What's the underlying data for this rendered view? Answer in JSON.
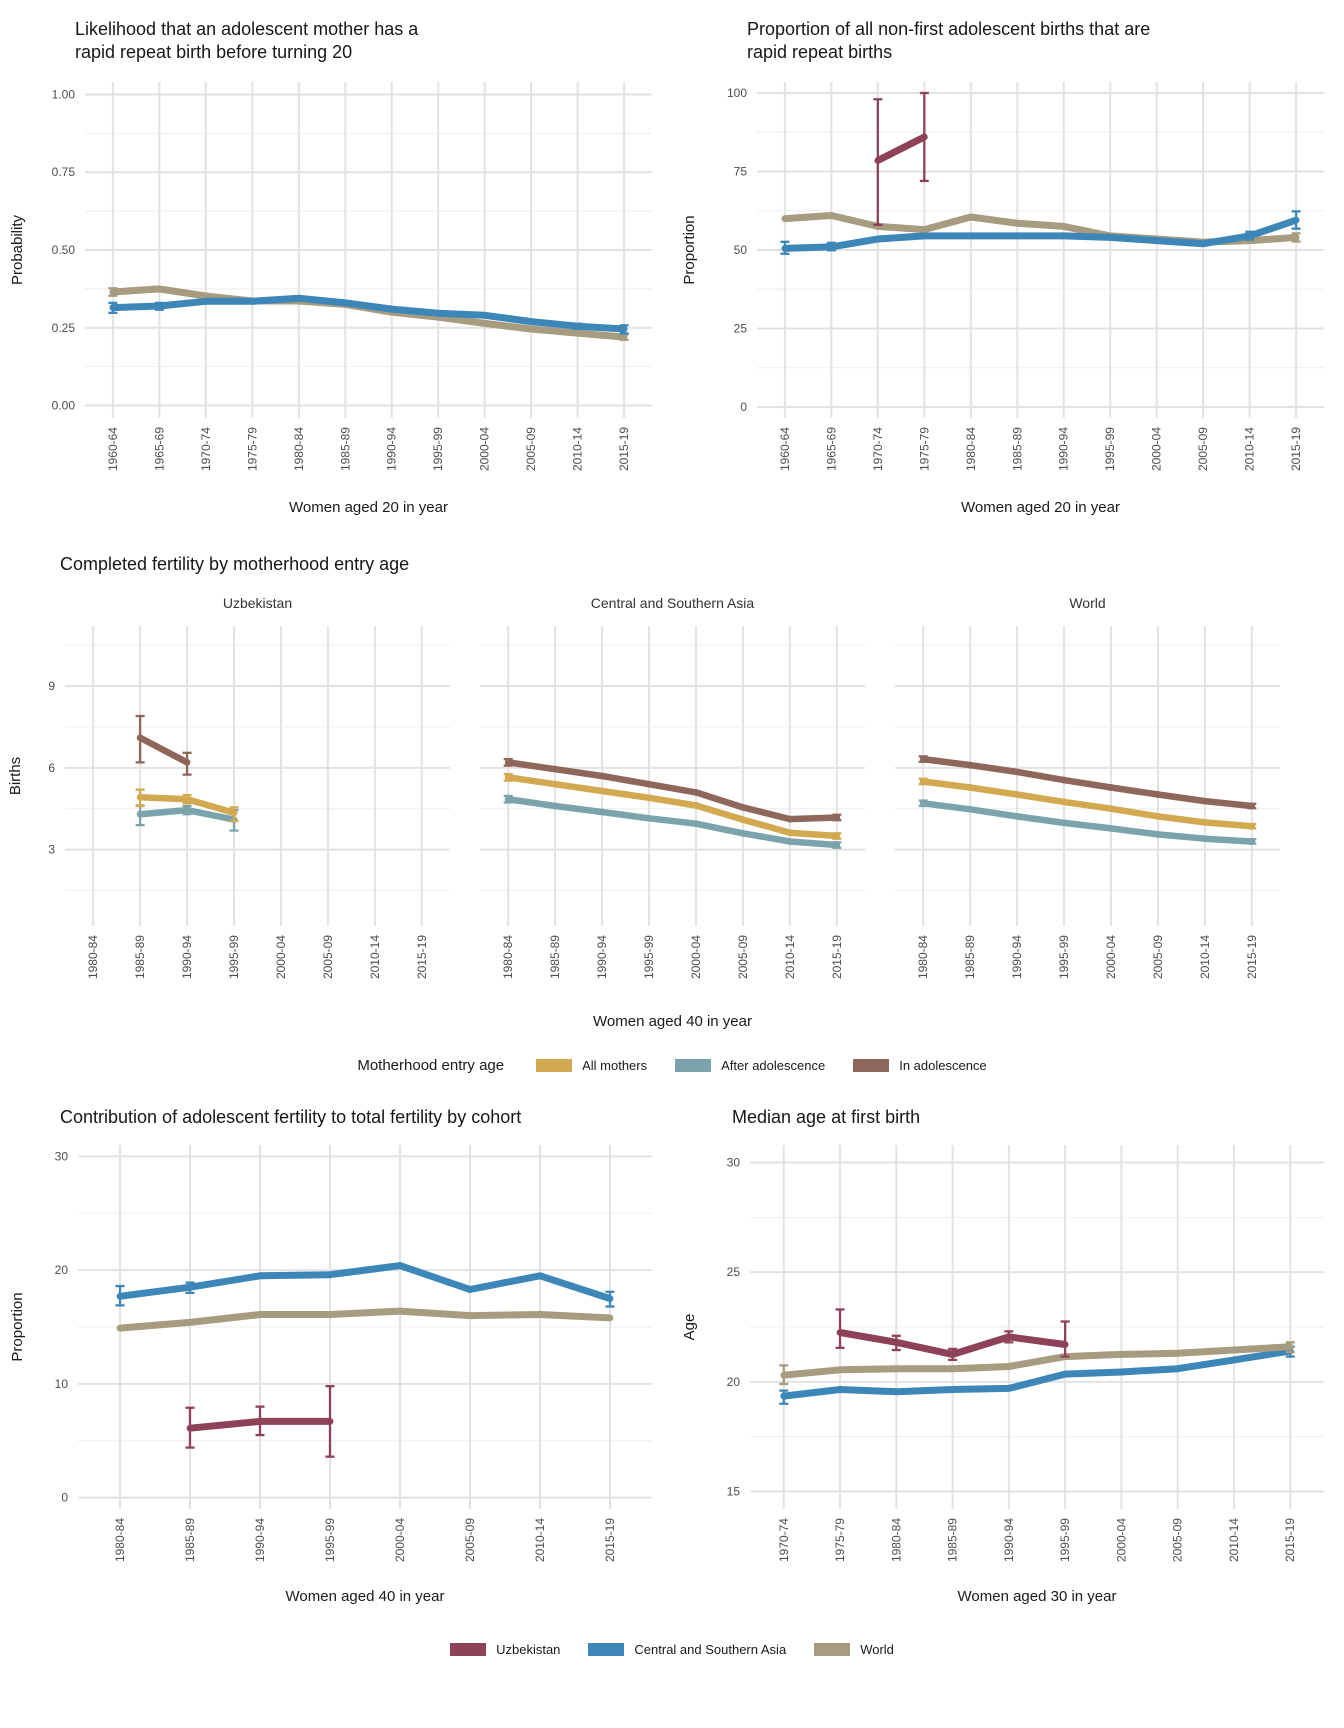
{
  "colors": {
    "uzbekistan": "#8e4258",
    "central_southern_asia": "#3d86b8",
    "world": "#a79b80",
    "all_mothers": "#d2a850",
    "after_adolescence": "#7ba3ab",
    "in_adolescence": "#8f665a"
  },
  "entry_age_legend": {
    "title": "Motherhood entry age",
    "items": [
      {
        "label": "All mothers",
        "color": "all_mothers"
      },
      {
        "label": "After adolescence",
        "color": "after_adolescence"
      },
      {
        "label": "In adolescence",
        "color": "in_adolescence"
      }
    ]
  },
  "region_legend": {
    "items": [
      {
        "label": "Uzbekistan",
        "color": "uzbekistan"
      },
      {
        "label": "Central and Southern Asia",
        "color": "central_southern_asia"
      },
      {
        "label": "World",
        "color": "world"
      }
    ]
  },
  "chart_data": [
    {
      "id": "rrb-likelihood",
      "type": "line",
      "title": "Likelihood that an adolescent mother has a\nrapid repeat birth before turning 20",
      "xlabel": "Women aged 20 in year",
      "ylabel": "Probability",
      "ylim": [
        -0.04,
        1.04
      ],
      "yticks": [
        0,
        0.25,
        0.5,
        0.75,
        1
      ],
      "ytick_labels": [
        "0.00",
        "0.25",
        "0.50",
        "0.75",
        "1.00"
      ],
      "categories": [
        "1960-64",
        "1965-69",
        "1970-74",
        "1975-79",
        "1980-84",
        "1985-89",
        "1990-94",
        "1995-99",
        "2000-04",
        "2005-09",
        "2010-14",
        "2015-19"
      ],
      "series": [
        {
          "name": "World",
          "color": "world",
          "values": [
            0.365,
            0.375,
            0.352,
            0.336,
            0.336,
            0.325,
            0.3,
            0.284,
            0.264,
            0.246,
            0.233,
            0.22
          ],
          "err_lo": [
            0.353,
            null,
            null,
            null,
            null,
            null,
            null,
            null,
            null,
            null,
            null,
            0.211
          ],
          "err_hi": [
            0.377,
            null,
            null,
            null,
            null,
            null,
            null,
            null,
            null,
            null,
            null,
            0.229
          ]
        },
        {
          "name": "Central and Southern Asia",
          "color": "central_southern_asia",
          "values": [
            0.315,
            0.32,
            0.335,
            0.335,
            0.345,
            0.33,
            0.31,
            0.297,
            0.29,
            0.27,
            0.255,
            0.246
          ],
          "err_lo": [
            0.298,
            0.308,
            null,
            null,
            null,
            null,
            null,
            null,
            null,
            null,
            0.246,
            0.232
          ],
          "err_hi": [
            0.33,
            0.33,
            null,
            null,
            null,
            null,
            null,
            null,
            null,
            null,
            0.263,
            0.258
          ]
        }
      ]
    },
    {
      "id": "rrb-proportion",
      "type": "line",
      "title": "Proportion of all non-first adolescent births that are\nrapid repeat births",
      "xlabel": "Women aged 20 in year",
      "ylabel": "Proportion",
      "ylim": [
        -3.5,
        103.5
      ],
      "yticks": [
        0,
        25,
        50,
        75,
        100
      ],
      "ytick_labels": [
        "0",
        "25",
        "50",
        "75",
        "100"
      ],
      "categories": [
        "1960-64",
        "1965-69",
        "1970-74",
        "1975-79",
        "1980-84",
        "1985-89",
        "1990-94",
        "1995-99",
        "2000-04",
        "2005-09",
        "2010-14",
        "2015-19"
      ],
      "series": [
        {
          "name": "World",
          "color": "world",
          "values": [
            60,
            61,
            57.5,
            56.5,
            60.5,
            58.5,
            57.5,
            54.5,
            53.5,
            52.5,
            53,
            54
          ],
          "err_lo": [
            null,
            null,
            null,
            null,
            null,
            null,
            null,
            null,
            null,
            null,
            null,
            52.7
          ],
          "err_hi": [
            null,
            null,
            null,
            null,
            null,
            null,
            null,
            null,
            null,
            null,
            null,
            55.3
          ]
        },
        {
          "name": "Central and Southern Asia",
          "color": "central_southern_asia",
          "values": [
            50.5,
            51,
            53.5,
            54.5,
            54.5,
            54.5,
            54.5,
            54,
            53,
            52,
            54.5,
            59.5
          ],
          "err_lo": [
            48.8,
            49.9,
            null,
            null,
            null,
            null,
            null,
            null,
            null,
            null,
            53.3,
            56.8
          ],
          "err_hi": [
            52.6,
            52.3,
            null,
            null,
            null,
            null,
            null,
            null,
            null,
            null,
            55.8,
            62.3
          ]
        },
        {
          "name": "Uzbekistan",
          "color": "uzbekistan",
          "values": [
            null,
            null,
            78.5,
            86,
            null,
            null,
            null,
            null,
            null,
            null,
            null,
            null
          ],
          "err_lo": [
            null,
            null,
            58,
            72,
            null,
            null,
            null,
            null,
            null,
            null,
            null,
            null
          ],
          "err_hi": [
            null,
            null,
            98,
            100,
            null,
            null,
            null,
            null,
            null,
            null,
            null,
            null
          ]
        }
      ]
    },
    {
      "id": "completed-fertility",
      "type": "line-faceted",
      "title": "Completed fertility by motherhood entry age",
      "xlabel": "Women aged 40 in year",
      "ylabel": "Births",
      "ylim": [
        0.2,
        11.2
      ],
      "yticks": [
        3,
        6,
        9
      ],
      "ytick_labels": [
        "3",
        "6",
        "9"
      ],
      "categories": [
        "1980-84",
        "1985-89",
        "1990-94",
        "1995-99",
        "2000-04",
        "2005-09",
        "2010-14",
        "2015-19"
      ],
      "facets": [
        {
          "label": "Uzbekistan",
          "series": [
            {
              "name": "After adolescence",
              "color": "after_adolescence",
              "values": [
                null,
                4.3,
                4.45,
                4.1,
                null,
                null,
                null,
                null
              ],
              "err_lo": [
                null,
                3.9,
                4.3,
                3.7,
                null,
                null,
                null,
                null
              ],
              "err_hi": [
                null,
                4.62,
                4.6,
                4.45,
                null,
                null,
                null,
                null
              ]
            },
            {
              "name": "All mothers",
              "color": "all_mothers",
              "values": [
                null,
                4.92,
                4.85,
                4.35,
                null,
                null,
                null,
                null
              ],
              "err_lo": [
                null,
                4.6,
                4.7,
                4.05,
                null,
                null,
                null,
                null
              ],
              "err_hi": [
                null,
                5.2,
                5.0,
                4.55,
                null,
                null,
                null,
                null
              ]
            },
            {
              "name": "In adolescence",
              "color": "in_adolescence",
              "values": [
                null,
                7.1,
                6.2,
                null,
                null,
                null,
                null,
                null
              ],
              "err_lo": [
                null,
                6.2,
                5.75,
                null,
                null,
                null,
                null,
                null
              ],
              "err_hi": [
                null,
                7.9,
                6.55,
                null,
                null,
                null,
                null,
                null
              ]
            }
          ]
        },
        {
          "label": "Central and Southern Asia",
          "series": [
            {
              "name": "After adolescence",
              "color": "after_adolescence",
              "values": [
                4.85,
                4.6,
                4.38,
                4.15,
                3.95,
                3.6,
                3.3,
                3.17
              ],
              "err_lo": [
                4.73,
                null,
                null,
                null,
                null,
                null,
                null,
                3.07
              ],
              "err_hi": [
                4.97,
                null,
                null,
                null,
                null,
                null,
                null,
                3.27
              ]
            },
            {
              "name": "All mothers",
              "color": "all_mothers",
              "values": [
                5.65,
                5.4,
                5.15,
                4.9,
                4.62,
                4.1,
                3.62,
                3.5
              ],
              "err_lo": [
                5.53,
                null,
                null,
                null,
                null,
                null,
                null,
                3.4
              ],
              "err_hi": [
                5.77,
                null,
                null,
                null,
                null,
                null,
                null,
                3.6
              ]
            },
            {
              "name": "In adolescence",
              "color": "in_adolescence",
              "values": [
                6.2,
                5.95,
                5.7,
                5.4,
                5.1,
                4.55,
                4.12,
                4.18
              ],
              "err_lo": [
                6.08,
                null,
                null,
                null,
                null,
                null,
                null,
                4.08
              ],
              "err_hi": [
                6.32,
                null,
                null,
                null,
                null,
                null,
                null,
                4.28
              ]
            }
          ]
        },
        {
          "label": "World",
          "series": [
            {
              "name": "After adolescence",
              "color": "after_adolescence",
              "values": [
                4.7,
                4.48,
                4.22,
                3.98,
                3.78,
                3.56,
                3.4,
                3.3
              ],
              "err_lo": [
                4.6,
                null,
                null,
                null,
                null,
                null,
                null,
                3.22
              ],
              "err_hi": [
                4.8,
                null,
                null,
                null,
                null,
                null,
                null,
                3.38
              ]
            },
            {
              "name": "All mothers",
              "color": "all_mothers",
              "values": [
                5.5,
                5.28,
                5.02,
                4.75,
                4.5,
                4.22,
                4.0,
                3.86
              ],
              "err_lo": [
                5.4,
                null,
                null,
                null,
                null,
                null,
                null,
                3.78
              ],
              "err_hi": [
                5.6,
                null,
                null,
                null,
                null,
                null,
                null,
                3.94
              ]
            },
            {
              "name": "In adolescence",
              "color": "in_adolescence",
              "values": [
                6.32,
                6.1,
                5.85,
                5.55,
                5.28,
                5.02,
                4.78,
                4.6
              ],
              "err_lo": [
                6.22,
                null,
                null,
                null,
                null,
                null,
                null,
                4.52
              ],
              "err_hi": [
                6.42,
                null,
                null,
                null,
                null,
                null,
                null,
                4.68
              ]
            }
          ]
        }
      ]
    },
    {
      "id": "adolescent-contribution",
      "type": "line",
      "title": "Contribution of adolescent fertility to total fertility by cohort",
      "xlabel": "Women aged 40 in year",
      "ylabel": "Proportion",
      "ylim": [
        -1,
        31
      ],
      "yticks": [
        0,
        10,
        20,
        30
      ],
      "ytick_labels": [
        "0",
        "10",
        "20",
        "30"
      ],
      "categories": [
        "1980-84",
        "1985-89",
        "1990-94",
        "1995-99",
        "2000-04",
        "2005-09",
        "2010-14",
        "2015-19"
      ],
      "series": [
        {
          "name": "World",
          "color": "world",
          "values": [
            14.9,
            15.4,
            16.1,
            16.1,
            16.4,
            16.0,
            16.1,
            15.8
          ]
        },
        {
          "name": "Central and Southern Asia",
          "color": "central_southern_asia",
          "values": [
            17.7,
            18.5,
            19.5,
            19.6,
            20.4,
            18.3,
            19.5,
            17.5
          ],
          "err_lo": [
            16.9,
            18.0,
            null,
            null,
            null,
            null,
            null,
            16.8
          ],
          "err_hi": [
            18.6,
            18.9,
            null,
            null,
            null,
            null,
            null,
            18.1
          ]
        },
        {
          "name": "Uzbekistan",
          "color": "uzbekistan",
          "values": [
            null,
            6.1,
            6.7,
            6.7,
            null,
            null,
            null,
            null
          ],
          "err_lo": [
            null,
            4.4,
            5.5,
            3.6,
            null,
            null,
            null,
            null
          ],
          "err_hi": [
            null,
            7.9,
            8.0,
            9.8,
            null,
            null,
            null,
            null
          ]
        }
      ]
    },
    {
      "id": "median-age-first-birth",
      "type": "line",
      "title": "Median age at first birth",
      "xlabel": "Women aged 30 in year",
      "ylabel": "Age",
      "ylim": [
        14.2,
        30.8
      ],
      "yticks": [
        15,
        20,
        25,
        30
      ],
      "ytick_labels": [
        "15",
        "20",
        "25",
        "30"
      ],
      "categories": [
        "1970-74",
        "1975-79",
        "1980-84",
        "1985-89",
        "1990-94",
        "1995-99",
        "2000-04",
        "2005-09",
        "2010-14",
        "2015-19"
      ],
      "series": [
        {
          "name": "Central and Southern Asia",
          "color": "central_southern_asia",
          "values": [
            19.35,
            19.65,
            19.55,
            19.65,
            19.7,
            20.35,
            20.45,
            20.6,
            21.0,
            21.4
          ],
          "err_lo": [
            19.0,
            null,
            null,
            null,
            null,
            null,
            null,
            null,
            null,
            21.15
          ],
          "err_hi": [
            19.6,
            null,
            null,
            null,
            null,
            null,
            null,
            null,
            null,
            21.6
          ]
        },
        {
          "name": "World",
          "color": "world",
          "values": [
            20.3,
            20.55,
            20.6,
            20.6,
            20.7,
            21.15,
            21.25,
            21.3,
            21.45,
            21.6
          ],
          "err_lo": [
            19.9,
            null,
            null,
            null,
            null,
            null,
            null,
            null,
            null,
            21.35
          ],
          "err_hi": [
            20.75,
            null,
            null,
            null,
            null,
            null,
            null,
            null,
            null,
            21.8
          ]
        },
        {
          "name": "Uzbekistan",
          "color": "uzbekistan",
          "values": [
            null,
            22.25,
            21.8,
            21.25,
            22.05,
            21.7,
            null,
            null,
            null,
            null
          ],
          "err_lo": [
            null,
            21.55,
            21.45,
            21.0,
            21.8,
            21.15,
            null,
            null,
            null,
            null
          ],
          "err_hi": [
            null,
            23.3,
            22.1,
            21.5,
            22.3,
            22.75,
            null,
            null,
            null,
            null
          ]
        }
      ]
    }
  ]
}
